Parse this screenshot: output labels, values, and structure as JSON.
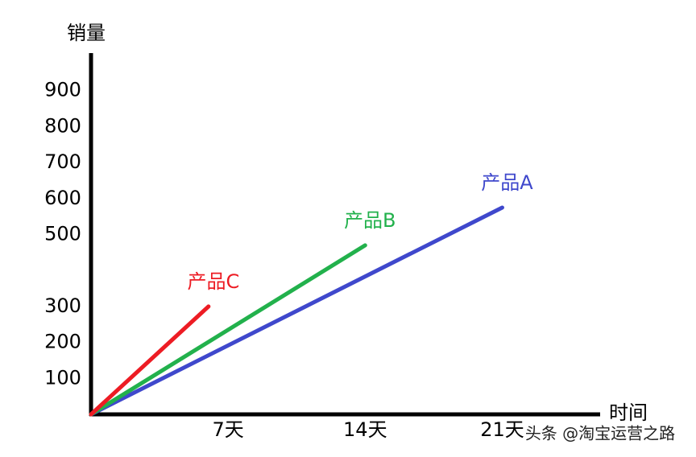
{
  "chart_data": {
    "type": "line",
    "y_label": "销量",
    "x_label": "时间",
    "xlim": [
      0,
      26
    ],
    "xticks": [
      {
        "value": 7,
        "label": "7天"
      },
      {
        "value": 14,
        "label": "14天"
      },
      {
        "value": 21,
        "label": "21天"
      }
    ],
    "ylim": [
      0,
      1000
    ],
    "yticks": [
      100,
      200,
      300,
      500,
      600,
      700,
      800,
      900
    ],
    "series": [
      {
        "name": "产品A",
        "color": "#3f48cc",
        "x": [
          0,
          21
        ],
        "values": [
          0,
          575
        ]
      },
      {
        "name": "产品B",
        "color": "#22b14c",
        "x": [
          0,
          14
        ],
        "values": [
          0,
          470
        ]
      },
      {
        "name": "产品C",
        "color": "#ed1c24",
        "x": [
          0,
          6
        ],
        "values": [
          0,
          300
        ]
      }
    ],
    "watermark": "头条 @淘宝运营之路"
  }
}
